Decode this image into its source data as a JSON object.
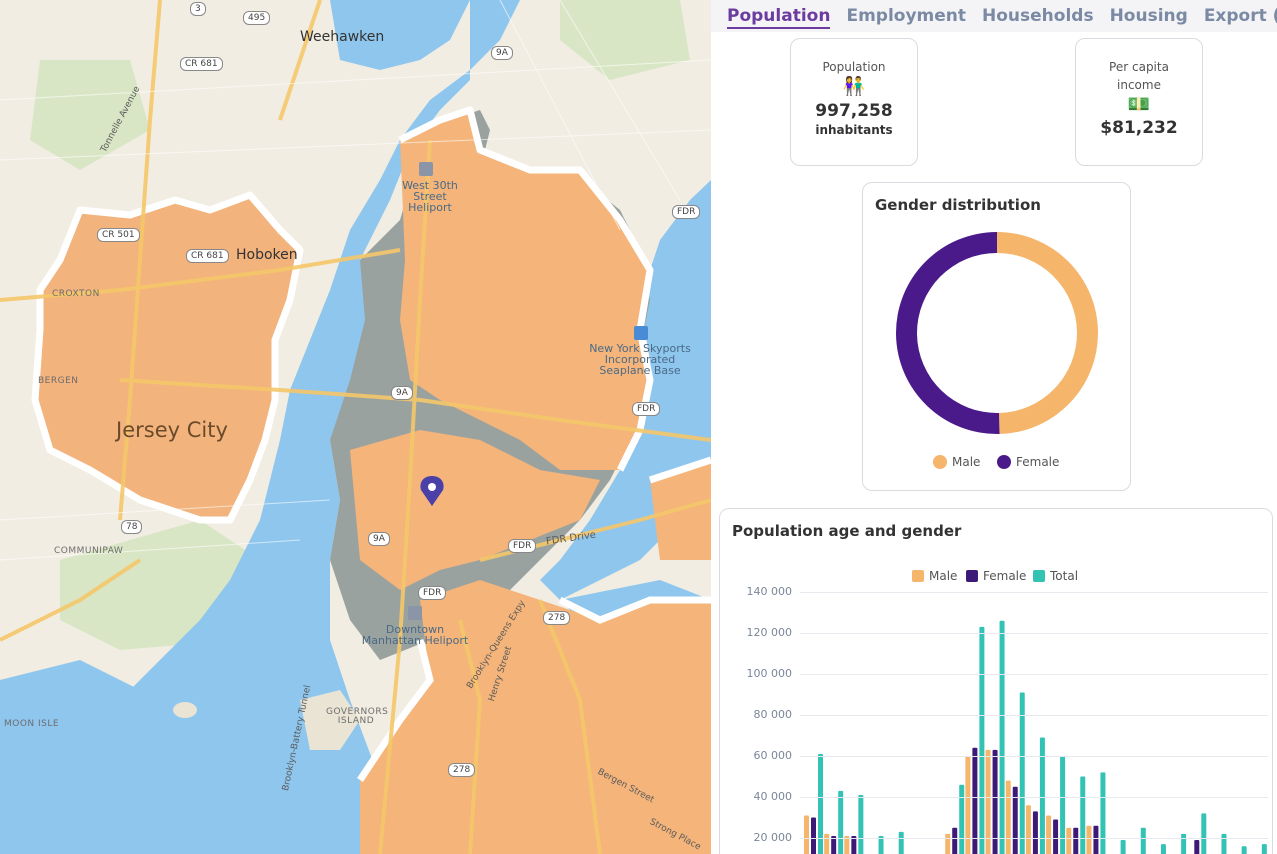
{
  "map": {
    "labels": {
      "weehawken": "Weehawken",
      "hoboken": "Hoboken",
      "jersey_city": "Jersey City",
      "croxton": "CROXTON",
      "bergen": "BERGEN",
      "communipaw": "COMMUNIPAW",
      "moon_isle": "MOON ISLE",
      "governors_island": "GOVERNORS ISLAND",
      "west30th": "West 30th Street Heliport",
      "skyports": "New York Skyports Incorporated Seaplane Base",
      "downtown_heliport": "Downtown Manhattan Heliport",
      "fdr_drive": "FDR Drive",
      "tonnelle": "Tonnelle Avenue",
      "henry_street": "Henry Street",
      "bergen_street": "Bergen Street",
      "strong_place": "Strong Place",
      "bqe": "Brooklyn-Queens Expy",
      "battery_tunnel": "Brooklyn-Battery Tunnel"
    },
    "shields": [
      "3",
      "495",
      "CR 681",
      "9A",
      "CR 501",
      "CR 681",
      "9A",
      "FDR",
      "9A",
      "FDR",
      "FDR",
      "FDR",
      "278",
      "78",
      "278",
      "FDR"
    ],
    "marker": "location-pin-icon"
  },
  "tabs": [
    "Population",
    "Employment",
    "Households",
    "Housing",
    "Export (Excel)"
  ],
  "active_tab": 0,
  "population_card": {
    "label": "Population",
    "icon": "👫",
    "value": "997,258",
    "unit": "inhabitants"
  },
  "income_card": {
    "label_line1": "Per capita",
    "label_line2": "income",
    "icon": "💵",
    "value": "$81,232"
  },
  "gender_chart": {
    "title": "Gender distribution",
    "legend": [
      "Male",
      "Female"
    ],
    "colors": {
      "male": "#f5b56b",
      "female": "#4a1a8a"
    }
  },
  "age_chart": {
    "title": "Population age and gender",
    "legend": [
      "Male",
      "Female",
      "Total"
    ],
    "colors": {
      "male": "#f5b56b",
      "female": "#3d1a78",
      "total": "#33c3b4"
    },
    "yticks": [
      "140 000",
      "120 000",
      "100 000",
      "80 000",
      "60 000",
      "40 000",
      "20 000"
    ]
  },
  "chart_data": [
    {
      "type": "pie",
      "title": "Gender distribution",
      "labels": [
        "Male",
        "Female"
      ],
      "values": [
        49.6,
        50.4
      ],
      "colors": [
        "#f5b56b",
        "#4a1a8a"
      ],
      "legend": "bottom"
    },
    {
      "type": "bar",
      "title": "Population age and gender",
      "ylim": [
        0,
        140000
      ],
      "legend": "top",
      "grid": true,
      "series": [
        {
          "name": "Male",
          "values": [
            31000,
            22000,
            21000,
            0,
            0,
            0,
            0,
            22000,
            60000,
            63000,
            48000,
            36000,
            31000,
            25000,
            26000,
            0,
            0,
            0,
            0,
            0,
            0,
            0,
            0
          ]
        },
        {
          "name": "Female",
          "values": [
            30000,
            21000,
            21000,
            0,
            0,
            0,
            0,
            25000,
            64000,
            63000,
            45000,
            33000,
            29000,
            25000,
            26000,
            0,
            0,
            0,
            0,
            19000,
            0,
            0,
            0
          ]
        },
        {
          "name": "Total",
          "values": [
            61000,
            43000,
            41000,
            21000,
            23000,
            0,
            0,
            46000,
            123000,
            126000,
            91000,
            69000,
            60000,
            50000,
            52000,
            19000,
            25000,
            17000,
            22000,
            32000,
            22000,
            16000,
            17000
          ]
        }
      ]
    }
  ]
}
